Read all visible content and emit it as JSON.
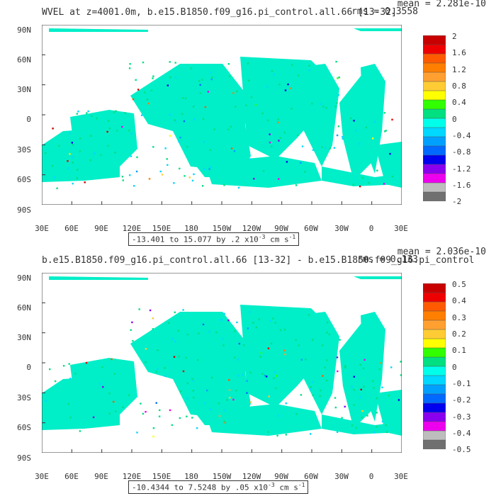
{
  "colors": {
    "ocean_dominant": "#00eec8",
    "land": "#ffffff",
    "frame": "#333333",
    "palette": [
      "#707070",
      "#bdbdbd",
      "#ee00ee",
      "#8a00ee",
      "#0000ee",
      "#0069ff",
      "#00a0ff",
      "#00d8ff",
      "#00ffea",
      "#00e080",
      "#31ff00",
      "#ffff00",
      "#ffcc33",
      "#ffa030",
      "#ff7f00",
      "#ff5a00",
      "#ee0000",
      "#c80000"
    ]
  },
  "axes": {
    "lat_ticks": [
      "90N",
      "60N",
      "30N",
      "0",
      "30S",
      "60S",
      "90S"
    ],
    "lon_ticks": [
      "30E",
      "60E",
      "90E",
      "120E",
      "150E",
      "180",
      "150W",
      "120W",
      "90W",
      "60W",
      "30W",
      "0",
      "30E"
    ]
  },
  "panels": [
    {
      "title": "WVEL at z=4001.0m, b.e15.B1850.f09_g16.pi_control.all.66 [13-32]",
      "mean": "mean = 2.281e-10",
      "rms": "rms = 0.3558",
      "range_prefix": "-13.401 to 15.077 by .2 x10",
      "range_exp": "-3",
      "range_unit": " cm s",
      "range_unit_exp": "-1",
      "colorbar_labels": [
        "2",
        "1.6",
        "1.2",
        "0.8",
        "0.4",
        "0",
        "-0.4",
        "-0.8",
        "-1.2",
        "-1.6",
        "-2"
      ]
    },
    {
      "title": "b.e15.B1850.f09_g16.pi_control.all.66 [13-32] - b.e15.B1850.f09_g16.pi_control",
      "mean": "mean = 2.036e-10",
      "rms": "rms = 0.133",
      "range_prefix": "-10.4344 to 7.5248 by .05 x10",
      "range_exp": "-3",
      "range_unit": " cm s",
      "range_unit_exp": "-1",
      "colorbar_labels": [
        "0.5",
        "0.4",
        "0.3",
        "0.2",
        "0.1",
        "0",
        "-0.1",
        "-0.2",
        "-0.3",
        "-0.4",
        "-0.5"
      ]
    }
  ],
  "chart_data": [
    {
      "type": "heatmap",
      "title": "WVEL at z=4001.0m, b.e15.B1850.f09_g16.pi_control.all.66 [13-32]",
      "x": [
        "30E",
        "60E",
        "90E",
        "120E",
        "150E",
        "180",
        "150W",
        "120W",
        "90W",
        "60W",
        "30W",
        "0",
        "30E"
      ],
      "y": [
        "90N",
        "60N",
        "30N",
        "0",
        "30S",
        "60S",
        "90S"
      ],
      "xlim": [
        30,
        390
      ],
      "ylim": [
        -90,
        90
      ],
      "colorbar_levels": [
        2,
        1.6,
        1.2,
        0.8,
        0.4,
        0,
        -0.4,
        -0.8,
        -1.2,
        -1.6,
        -2
      ],
      "min": -13.401,
      "max": 15.077,
      "interval": 0.2,
      "scale": "x10^-3 cm s^-1",
      "mean": 2.281e-10,
      "rms": 0.3558
    },
    {
      "type": "heatmap",
      "title": "b.e15.B1850.f09_g16.pi_control.all.66 [13-32] - b.e15.B1850.f09_g16.pi_control",
      "x": [
        "30E",
        "60E",
        "90E",
        "120E",
        "150E",
        "180",
        "150W",
        "120W",
        "90W",
        "60W",
        "30W",
        "0",
        "30E"
      ],
      "y": [
        "90N",
        "60N",
        "30N",
        "0",
        "30S",
        "60S",
        "90S"
      ],
      "xlim": [
        30,
        390
      ],
      "ylim": [
        -90,
        90
      ],
      "colorbar_levels": [
        0.5,
        0.4,
        0.3,
        0.2,
        0.1,
        0,
        -0.1,
        -0.2,
        -0.3,
        -0.4,
        -0.5
      ],
      "min": -10.4344,
      "max": 7.5248,
      "interval": 0.05,
      "scale": "x10^-3 cm s^-1",
      "mean": 2.036e-10,
      "rms": 0.133
    }
  ]
}
